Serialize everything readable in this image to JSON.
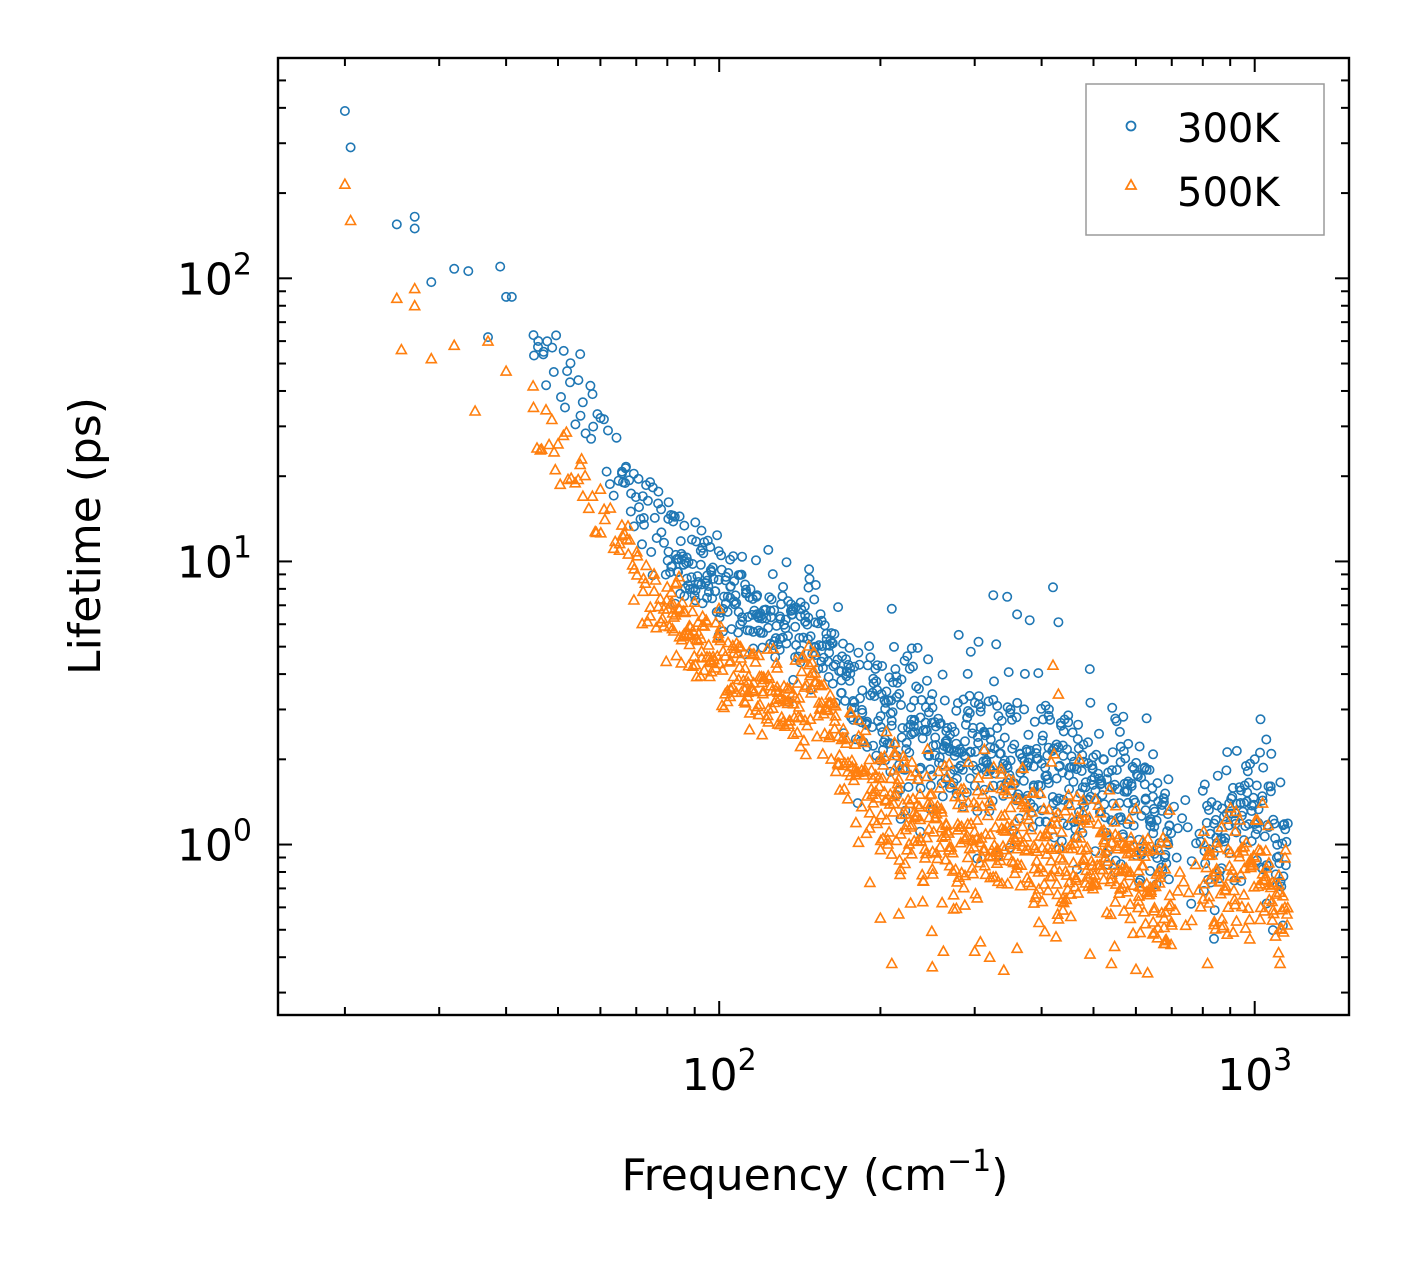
{
  "chart_data": {
    "type": "scatter",
    "title": "",
    "xlabel": "Frequency (cm",
    "xlabel_sup": "−1",
    "xlabel_suffix": ")",
    "ylabel": "Lifetime (ps)",
    "xscale": "log",
    "yscale": "log",
    "xlim": [
      15,
      1500
    ],
    "ylim": [
      0.25,
      600
    ],
    "x_ticks": [
      {
        "base": "10",
        "exp": "2",
        "value": 100
      },
      {
        "base": "10",
        "exp": "3",
        "value": 1000
      }
    ],
    "y_ticks": [
      {
        "base": "10",
        "exp": "0",
        "value": 1
      },
      {
        "base": "10",
        "exp": "1",
        "value": 10
      },
      {
        "base": "10",
        "exp": "2",
        "value": 100
      }
    ],
    "legend_position": "top-right",
    "series": [
      {
        "name": "300K",
        "color": "#1f77b4",
        "marker": "circle",
        "trend": [
          [
            20,
            400
          ],
          [
            25,
            150
          ],
          [
            30,
            105
          ],
          [
            38,
            95
          ],
          [
            45,
            65
          ],
          [
            55,
            38
          ],
          [
            65,
            22
          ],
          [
            75,
            14
          ],
          [
            85,
            10
          ],
          [
            100,
            8.2
          ],
          [
            120,
            6.6
          ],
          [
            150,
            5.6
          ],
          [
            175,
            3.6
          ],
          [
            200,
            2.7
          ],
          [
            250,
            2.3
          ],
          [
            300,
            2.1
          ],
          [
            400,
            1.9
          ],
          [
            500,
            1.6
          ],
          [
            600,
            1.4
          ],
          [
            700,
            1.1
          ],
          [
            800,
            1.0
          ],
          [
            1000,
            1.5
          ],
          [
            1150,
            0.85
          ]
        ],
        "outliers": [
          [
            20,
            390
          ],
          [
            20.5,
            290
          ],
          [
            25,
            155
          ],
          [
            27,
            165
          ],
          [
            27,
            150
          ],
          [
            29,
            97
          ],
          [
            32,
            108
          ],
          [
            34,
            106
          ],
          [
            37,
            62
          ],
          [
            39,
            110
          ],
          [
            40,
            86
          ],
          [
            41,
            86
          ],
          [
            45,
            63
          ],
          [
            47,
            55
          ],
          [
            52,
            47
          ],
          [
            55,
            54
          ],
          [
            58,
            39
          ],
          [
            62,
            29
          ],
          [
            72,
            17
          ],
          [
            210,
            6.8
          ],
          [
            250,
            3.4
          ],
          [
            280,
            5.5
          ],
          [
            295,
            4.8
          ],
          [
            305,
            5.2
          ],
          [
            325,
            7.6
          ],
          [
            345,
            7.5
          ],
          [
            360,
            6.5
          ],
          [
            380,
            6.2
          ],
          [
            420,
            8.1
          ],
          [
            430,
            6.1
          ],
          [
            560,
            2.5
          ],
          [
            690,
            1.7
          ],
          [
            800,
            1.55
          ],
          [
            1000,
            2.0
          ],
          [
            1130,
            1.17
          ]
        ]
      },
      {
        "name": "500K",
        "color": "#ff7f0e",
        "marker": "triangle",
        "trend": [
          [
            20,
            210
          ],
          [
            25,
            75
          ],
          [
            30,
            55
          ],
          [
            38,
            48
          ],
          [
            45,
            33
          ],
          [
            55,
            19
          ],
          [
            65,
            11
          ],
          [
            75,
            6.6
          ],
          [
            85,
            5.8
          ],
          [
            100,
            4.6
          ],
          [
            120,
            3.2
          ],
          [
            150,
            3.4
          ],
          [
            175,
            2.0
          ],
          [
            200,
            1.3
          ],
          [
            250,
            1.15
          ],
          [
            300,
            1.1
          ],
          [
            400,
            1.0
          ],
          [
            500,
            0.85
          ],
          [
            600,
            0.75
          ],
          [
            700,
            0.62
          ],
          [
            800,
            0.7
          ],
          [
            1000,
            0.8
          ],
          [
            1150,
            0.6
          ]
        ],
        "outliers": [
          [
            20,
            215
          ],
          [
            20.5,
            160
          ],
          [
            25,
            85
          ],
          [
            25.5,
            56
          ],
          [
            27,
            92
          ],
          [
            27,
            80
          ],
          [
            29,
            52
          ],
          [
            32,
            58
          ],
          [
            35,
            34
          ],
          [
            37,
            60
          ],
          [
            40,
            47
          ],
          [
            45,
            35
          ],
          [
            50,
            26
          ],
          [
            55,
            22
          ],
          [
            60,
            18
          ],
          [
            200,
            0.55
          ],
          [
            210,
            0.38
          ],
          [
            250,
            0.37
          ],
          [
            300,
            0.42
          ],
          [
            320,
            0.4
          ],
          [
            340,
            0.36
          ],
          [
            360,
            0.43
          ],
          [
            420,
            4.3
          ],
          [
            430,
            3.4
          ],
          [
            540,
            0.38
          ],
          [
            700,
            0.52
          ],
          [
            1150,
            0.52
          ]
        ]
      }
    ]
  }
}
